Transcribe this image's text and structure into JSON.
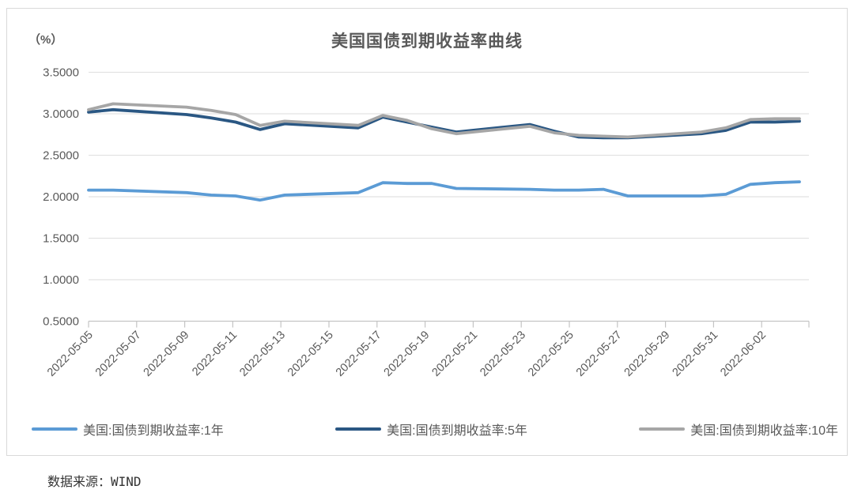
{
  "header": {
    "title": "美国国债到期收益率曲线",
    "y_unit_label": "（%）"
  },
  "footer": {
    "source": "数据来源：WIND"
  },
  "chart_data": {
    "type": "line",
    "title": "美国国债到期收益率曲线",
    "y_unit": "%",
    "x": [
      "2022-05-05",
      "2022-05-06",
      "2022-05-09",
      "2022-05-10",
      "2022-05-11",
      "2022-05-12",
      "2022-05-13",
      "2022-05-16",
      "2022-05-17",
      "2022-05-18",
      "2022-05-19",
      "2022-05-20",
      "2022-05-23",
      "2022-05-24",
      "2022-05-25",
      "2022-05-26",
      "2022-05-27",
      "2022-05-30",
      "2022-05-31",
      "2022-06-01",
      "2022-06-02",
      "2022-06-03"
    ],
    "x_tick_labels": [
      "2022-05-05",
      "2022-05-07",
      "2022-05-09",
      "2022-05-11",
      "2022-05-13",
      "2022-05-15",
      "2022-05-17",
      "2022-05-19",
      "2022-05-21",
      "2022-05-23",
      "2022-05-25",
      "2022-05-27",
      "2022-05-29",
      "2022-05-31",
      "2022-06-02"
    ],
    "y_tick_labels": [
      "3.5000",
      "3.0000",
      "2.5000",
      "2.0000",
      "1.5000",
      "1.0000",
      "0.5000"
    ],
    "ylim": [
      0.5,
      3.5
    ],
    "grid": "horizontal",
    "legend_position": "bottom",
    "colors": {
      "grid": "#e2e2e2",
      "axis": "#c4c4c4",
      "tick_text": "#595959"
    },
    "series": [
      {
        "name": "美国:国债到期收益率:1年",
        "color": "#5B9BD5",
        "values": [
          2.08,
          2.08,
          2.05,
          2.02,
          2.01,
          1.96,
          2.02,
          2.05,
          2.17,
          2.16,
          2.16,
          2.1,
          2.09,
          2.08,
          2.08,
          2.09,
          2.01,
          2.01,
          2.03,
          2.15,
          2.17,
          2.18
        ]
      },
      {
        "name": "美国:国债到期收益率:5年",
        "color": "#2A5783",
        "values": [
          3.02,
          3.05,
          2.99,
          2.95,
          2.9,
          2.81,
          2.88,
          2.83,
          2.96,
          2.9,
          2.84,
          2.78,
          2.87,
          2.79,
          2.72,
          2.71,
          2.71,
          2.76,
          2.8,
          2.9,
          2.9,
          2.91
        ]
      },
      {
        "name": "美国:国债到期收益率:10年",
        "color": "#A6A6A6",
        "values": [
          3.05,
          3.12,
          3.08,
          3.04,
          2.99,
          2.86,
          2.91,
          2.86,
          2.98,
          2.92,
          2.82,
          2.76,
          2.85,
          2.77,
          2.74,
          2.73,
          2.72,
          2.78,
          2.83,
          2.93,
          2.94,
          2.94
        ]
      }
    ]
  }
}
